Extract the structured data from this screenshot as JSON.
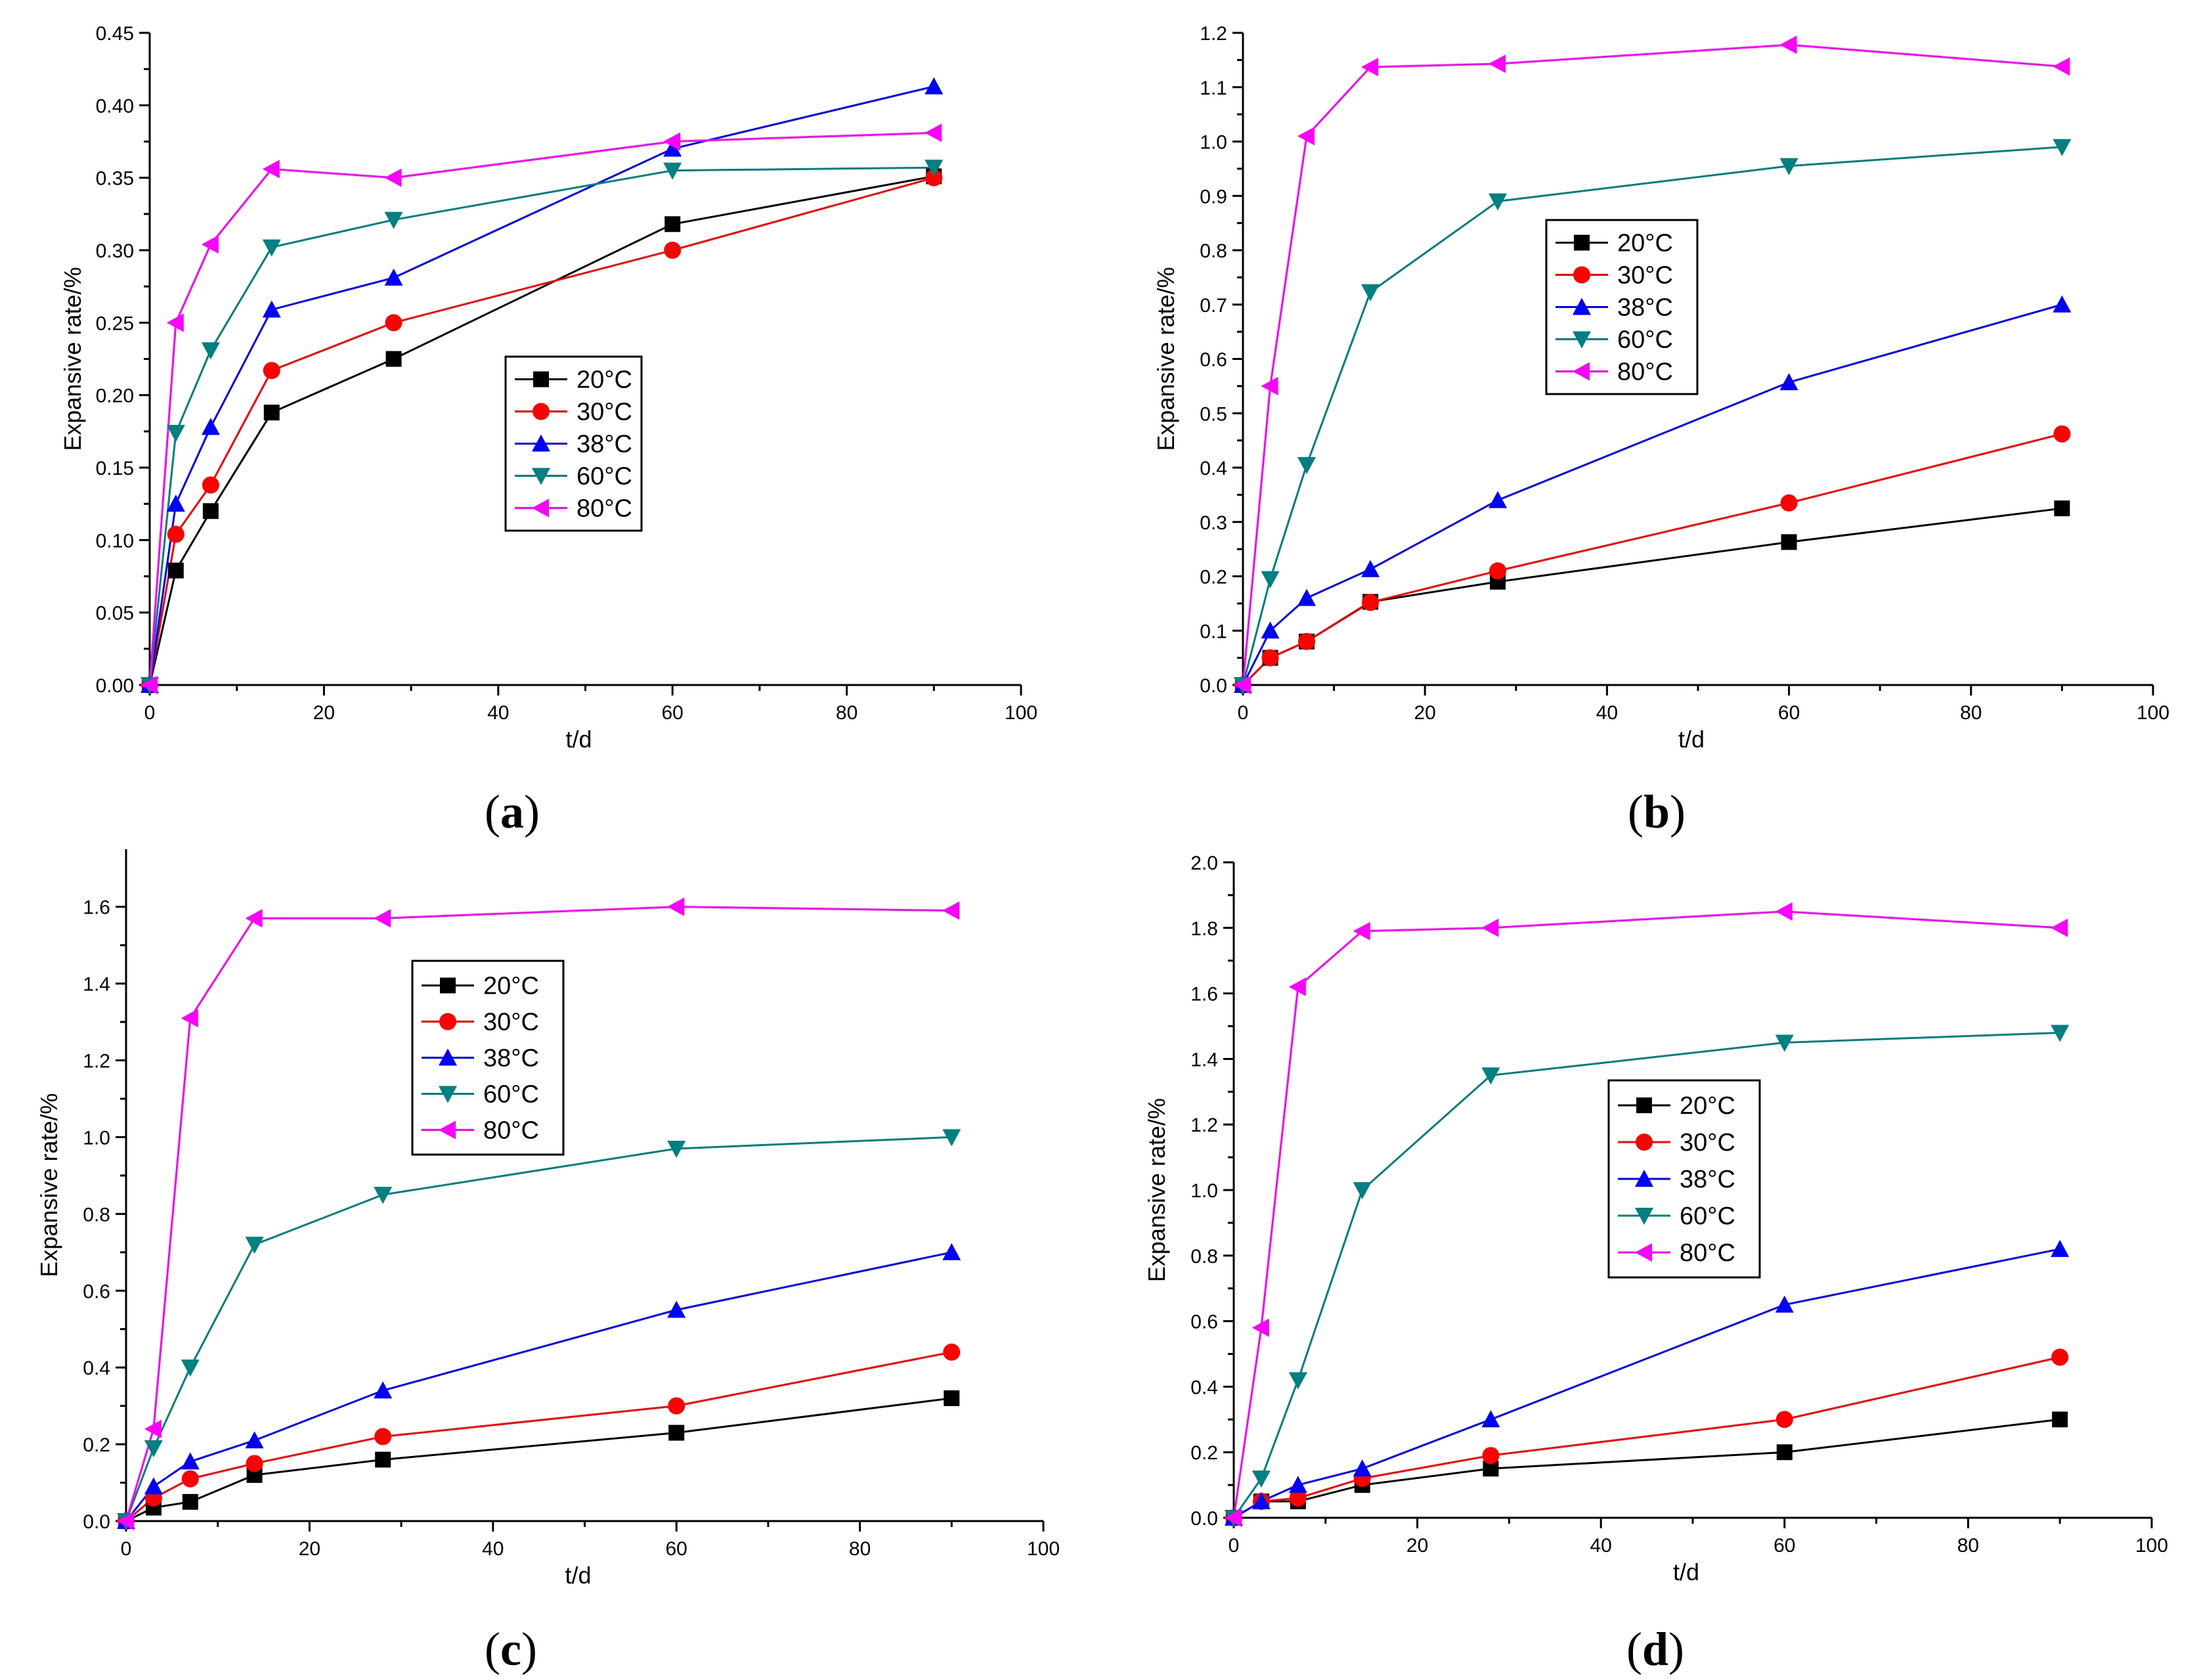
{
  "figure": {
    "background": "#ffffff"
  },
  "panel_labels": [
    "(a)",
    "(b)",
    "(c)",
    "(d)"
  ],
  "series_style": [
    {
      "name": "20°C",
      "color": "#000000",
      "marker": "square"
    },
    {
      "name": "30°C",
      "color": "#ff0000",
      "marker": "circle"
    },
    {
      "name": "38°C",
      "color": "#0000ff",
      "marker": "triangle-up"
    },
    {
      "name": "60°C",
      "color": "#008080",
      "marker": "triangle-down"
    },
    {
      "name": "80°C",
      "color": "#ff00ff",
      "marker": "triangle-left"
    }
  ],
  "chart_data": [
    {
      "type": "line",
      "panel": "(a)",
      "title": "",
      "xlabel": "t/d",
      "ylabel": "Expansive rate/%",
      "xlim": [
        0,
        100
      ],
      "ylim": [
        0,
        0.45
      ],
      "xticks": [
        0,
        20,
        40,
        60,
        80,
        100
      ],
      "yticks": [
        0.0,
        0.05,
        0.1,
        0.15,
        0.2,
        0.25,
        0.3,
        0.35,
        0.4,
        0.45
      ],
      "ytick_labels": [
        "0.00",
        "0.05",
        "0.10",
        "0.15",
        "0.20",
        "0.25",
        "0.30",
        "0.35",
        "0.40",
        "0.45"
      ],
      "legend_position": "center",
      "x": [
        0,
        3,
        7,
        14,
        28,
        60,
        90
      ],
      "series": [
        {
          "name": "20°C",
          "values": [
            0,
            0.079,
            0.12,
            0.188,
            0.225,
            0.318,
            0.351
          ]
        },
        {
          "name": "30°C",
          "values": [
            0,
            0.104,
            0.138,
            0.217,
            0.25,
            0.3,
            0.35
          ]
        },
        {
          "name": "38°C",
          "values": [
            0,
            0.125,
            0.178,
            0.259,
            0.281,
            0.37,
            0.413
          ]
        },
        {
          "name": "60°C",
          "values": [
            0,
            0.174,
            0.231,
            0.302,
            0.321,
            0.355,
            0.357
          ]
        },
        {
          "name": "80°C",
          "values": [
            0,
            0.25,
            0.304,
            0.356,
            0.35,
            0.375,
            0.381
          ]
        }
      ]
    },
    {
      "type": "line",
      "panel": "(b)",
      "title": "",
      "xlabel": "t/d",
      "ylabel": "Expansive rate/%",
      "xlim": [
        0,
        100
      ],
      "ylim": [
        0,
        1.2
      ],
      "xticks": [
        0,
        20,
        40,
        60,
        80,
        100
      ],
      "yticks": [
        0.0,
        0.1,
        0.2,
        0.3,
        0.4,
        0.5,
        0.6,
        0.7,
        0.8,
        0.9,
        1.0,
        1.1,
        1.2
      ],
      "ytick_labels": [
        "0.0",
        "0.1",
        "0.2",
        "0.3",
        "0.4",
        "0.5",
        "0.6",
        "0.7",
        "0.8",
        "0.9",
        "1.0",
        "1.1",
        "1.2"
      ],
      "legend_position": "upper-center",
      "x": [
        0,
        3,
        7,
        14,
        28,
        60,
        90
      ],
      "series": [
        {
          "name": "20°C",
          "values": [
            0,
            0.05,
            0.08,
            0.153,
            0.19,
            0.263,
            0.325
          ]
        },
        {
          "name": "30°C",
          "values": [
            0,
            0.05,
            0.08,
            0.152,
            0.21,
            0.335,
            0.462
          ]
        },
        {
          "name": "38°C",
          "values": [
            0,
            0.1,
            0.16,
            0.213,
            0.34,
            0.557,
            0.7
          ]
        },
        {
          "name": "60°C",
          "values": [
            0,
            0.195,
            0.405,
            0.723,
            0.89,
            0.955,
            0.99
          ]
        },
        {
          "name": "80°C",
          "values": [
            0,
            0.55,
            1.01,
            1.137,
            1.143,
            1.178,
            1.138
          ]
        }
      ]
    },
    {
      "type": "line",
      "panel": "(c)",
      "title": "",
      "xlabel": "t/d",
      "ylabel": "Expansive rate/%",
      "xlim": [
        0,
        100
      ],
      "ylim": [
        0,
        1.75
      ],
      "xticks": [
        0,
        20,
        40,
        60,
        80,
        100
      ],
      "yticks": [
        0.0,
        0.2,
        0.4,
        0.6,
        0.8,
        1.0,
        1.2,
        1.4,
        1.6
      ],
      "ytick_labels": [
        "0.0",
        "0.2",
        "0.4",
        "0.6",
        "0.8",
        "1.0",
        "1.2",
        "1.4",
        "1.6"
      ],
      "legend_position": "upper-center",
      "x": [
        0,
        3,
        7,
        14,
        28,
        60,
        90
      ],
      "series": [
        {
          "name": "20°C",
          "values": [
            0,
            0.035,
            0.05,
            0.12,
            0.16,
            0.23,
            0.32
          ]
        },
        {
          "name": "30°C",
          "values": [
            0,
            0.06,
            0.11,
            0.15,
            0.22,
            0.3,
            0.44
          ]
        },
        {
          "name": "38°C",
          "values": [
            0,
            0.09,
            0.155,
            0.21,
            0.34,
            0.55,
            0.7
          ]
        },
        {
          "name": "60°C",
          "values": [
            0,
            0.19,
            0.4,
            0.72,
            0.85,
            0.97,
            1.0
          ]
        },
        {
          "name": "80°C",
          "values": [
            0,
            0.24,
            1.31,
            1.57,
            1.57,
            1.6,
            1.59
          ]
        }
      ]
    },
    {
      "type": "line",
      "panel": "(d)",
      "title": "",
      "xlabel": "t/d",
      "ylabel": "Expansive rate/%",
      "xlim": [
        0,
        100
      ],
      "ylim": [
        0,
        2.0
      ],
      "xticks": [
        0,
        20,
        40,
        60,
        80,
        100
      ],
      "yticks": [
        0.0,
        0.2,
        0.4,
        0.6,
        0.8,
        1.0,
        1.2,
        1.4,
        1.6,
        1.8,
        2.0
      ],
      "ytick_labels": [
        "0.0",
        "0.2",
        "0.4",
        "0.6",
        "0.8",
        "1.0",
        "1.2",
        "1.4",
        "1.6",
        "1.8",
        "2.0"
      ],
      "legend_position": "center",
      "x": [
        0,
        3,
        7,
        14,
        28,
        60,
        90
      ],
      "series": [
        {
          "name": "20°C",
          "values": [
            0,
            0.05,
            0.05,
            0.1,
            0.15,
            0.2,
            0.3
          ]
        },
        {
          "name": "30°C",
          "values": [
            0,
            0.05,
            0.06,
            0.12,
            0.19,
            0.3,
            0.49
          ]
        },
        {
          "name": "38°C",
          "values": [
            0,
            0.05,
            0.1,
            0.15,
            0.3,
            0.65,
            0.82
          ]
        },
        {
          "name": "60°C",
          "values": [
            0,
            0.12,
            0.42,
            1.0,
            1.35,
            1.45,
            1.48
          ]
        },
        {
          "name": "80°C",
          "values": [
            0,
            0.58,
            1.62,
            1.79,
            1.8,
            1.85,
            1.8
          ]
        }
      ]
    }
  ]
}
